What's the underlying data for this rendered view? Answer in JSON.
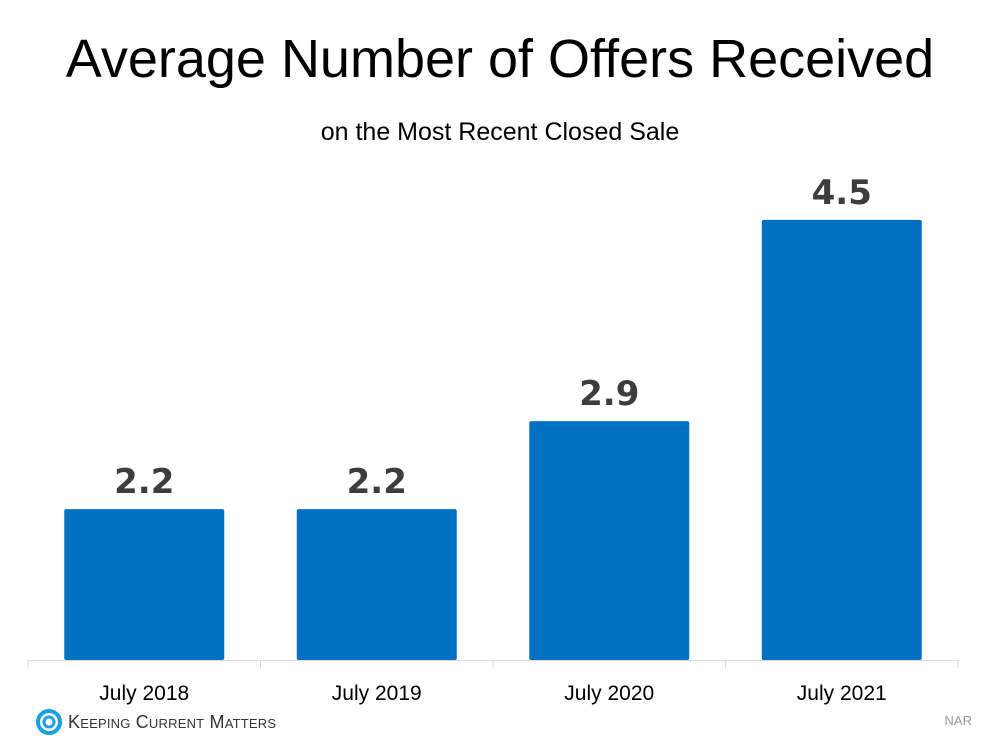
{
  "chart_data": {
    "type": "bar",
    "title": "Average Number of Offers Received",
    "subtitle": "on the Most Recent Closed Sale",
    "categories": [
      "July 2018",
      "July 2019",
      "July 2020",
      "July 2021"
    ],
    "values": [
      2.2,
      2.2,
      2.9,
      4.5
    ],
    "data_labels": [
      "2.2",
      "2.2",
      "2.9",
      "4.5"
    ],
    "ylim": [
      1,
      5
    ],
    "grid": false,
    "bar_color": "#0070C0",
    "label_color": "#3d3d3d"
  },
  "footer": {
    "logo_text": "Keeping Current Matters",
    "source": "NAR",
    "logo_color": "#1BA1E2"
  }
}
